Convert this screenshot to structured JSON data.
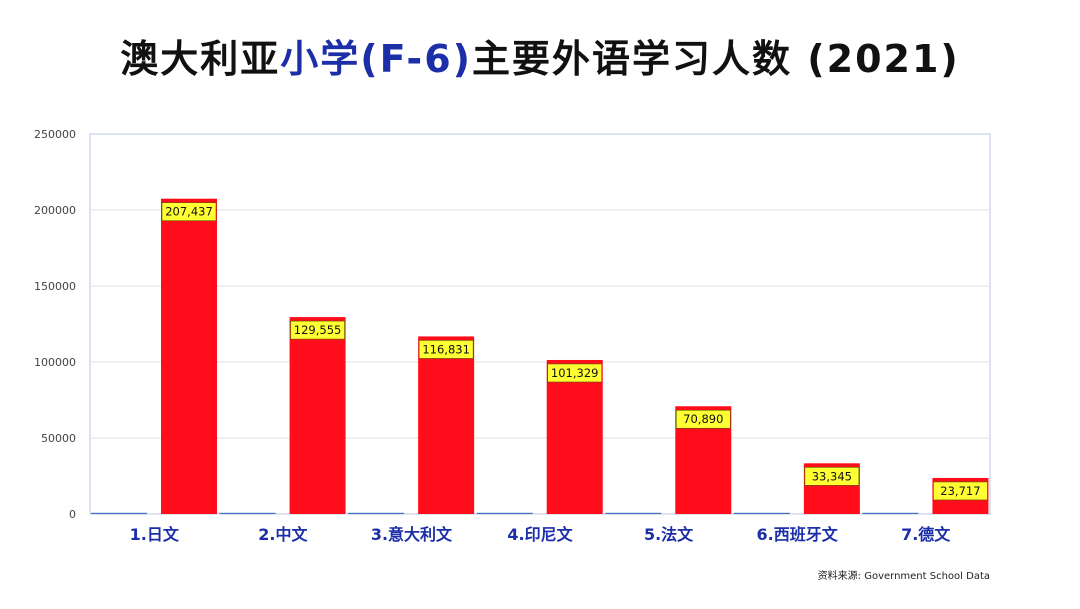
{
  "title": {
    "part1": "澳大利亚",
    "part2": "小学",
    "part3": "(F-6)",
    "part4": "主要外语学习人数",
    "part5": "(2021)"
  },
  "source": "资料来源: Government School Data",
  "colors": {
    "bar": "#ff0d1a",
    "label_bg": "#ffff33",
    "category_text": "#1c2ea8",
    "title_highlight": "#1c2ea8"
  },
  "chart_data": {
    "type": "bar",
    "title": "澳大利亚小学(F-6)主要外语学习人数 (2021)",
    "categories": [
      "1.日文",
      "2.中文",
      "3.意大利文",
      "4.印尼文",
      "5.法文",
      "6.西班牙文",
      "7.德文"
    ],
    "values": [
      207437,
      129555,
      116831,
      101329,
      70890,
      33345,
      23717
    ],
    "data_labels": [
      "207,437",
      "129,555",
      "116,831",
      "101,329",
      "70,890",
      "33,345",
      "23,717"
    ],
    "secondary_values": [
      0,
      0,
      0,
      0,
      0,
      0,
      0
    ],
    "ylim": [
      0,
      250000
    ],
    "yticks": [
      0,
      50000,
      100000,
      150000,
      200000,
      250000
    ],
    "ytick_labels": [
      "0",
      "50000",
      "100000",
      "150000",
      "200000",
      "250000"
    ],
    "grid": true,
    "legend": "none",
    "xlabel": "",
    "ylabel": ""
  }
}
